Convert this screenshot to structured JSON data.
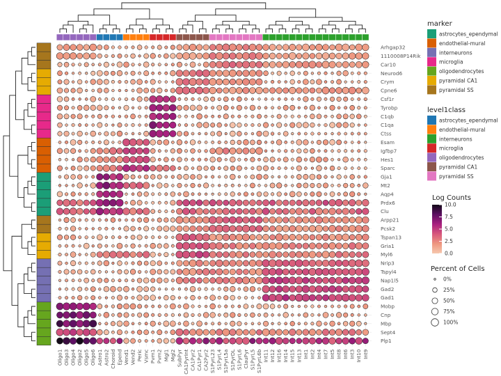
{
  "chart_data": {
    "type": "dotplot",
    "genes": [
      "Arhgap32",
      "1110008P14Rik",
      "Car10",
      "Neurod6",
      "Crym",
      "Cpne6",
      "Csf1r",
      "Tyrobp",
      "C1qb",
      "C1qa",
      "Ctss",
      "Esam",
      "Igfbp7",
      "Hes1",
      "Sparc",
      "Gja1",
      "Mt2",
      "Aqp4",
      "Prdx6",
      "Clu",
      "Arpp21",
      "Pcsk2",
      "Tspan13",
      "Gria1",
      "Myl6",
      "Nrip3",
      "Tspyl4",
      "Nap1l5",
      "Gad2",
      "Gad1",
      "Mobp",
      "Cnp",
      "Mbp",
      "Sept4",
      "Plp1"
    ],
    "clusters": [
      "Oligo1",
      "Oligo3",
      "Oligo4",
      "Oligo2",
      "Oligo5",
      "Oligo6",
      "Astro1",
      "Astro2",
      "Choroid",
      "Epend",
      "Vend1",
      "Vend2",
      "Peric",
      "Vsmc",
      "Pvm1",
      "Pvm2",
      "Mgl1",
      "Mgl2",
      "SubPyr",
      "CA1PyrInt",
      "CA1Pyr2",
      "CA1Pyr1",
      "CA2Pyr2",
      "S1PyrL23",
      "S1PyrL4",
      "S1PyrL5a",
      "S1PyrDL",
      "S1PyrL6",
      "ClauPyr",
      "S1PyrL5",
      "S1PyrL6b",
      "Int11",
      "Int12",
      "Int16",
      "Int14",
      "Int15",
      "Int13",
      "Int1",
      "Int2",
      "Int4",
      "Int7",
      "Int5",
      "Int8",
      "Int6",
      "Int3",
      "Int10",
      "Int9"
    ],
    "gene_marker": [
      "pyramidal SS",
      "pyramidal SS",
      "pyramidal SS",
      "pyramidal CA1",
      "pyramidal CA1",
      "pyramidal CA1",
      "microglia",
      "microglia",
      "microglia",
      "microglia",
      "microglia",
      "endothelial-mural",
      "endothelial-mural",
      "endothelial-mural",
      "endothelial-mural",
      "astrocytes_ependymal",
      "astrocytes_ependymal",
      "astrocytes_ependymal",
      "astrocytes_ependymal",
      "astrocytes_ependymal",
      "pyramidal SS",
      "pyramidal SS",
      "pyramidal CA1",
      "pyramidal CA1",
      "pyramidal CA1",
      "interneurons",
      "interneurons",
      "interneurons",
      "interneurons",
      "interneurons",
      "oligodendrocytes",
      "oligodendrocytes",
      "oligodendrocytes",
      "oligodendrocytes",
      "oligodendrocytes"
    ],
    "cluster_class": [
      "oligodendrocytes",
      "oligodendrocytes",
      "oligodendrocytes",
      "oligodendrocytes",
      "oligodendrocytes",
      "oligodendrocytes",
      "astrocytes_ependymal",
      "astrocytes_ependymal",
      "astrocytes_ependymal",
      "astrocytes_ependymal",
      "endothelial-mural",
      "endothelial-mural",
      "endothelial-mural",
      "endothelial-mural",
      "microglia",
      "microglia",
      "microglia",
      "microglia",
      "pyramidal CA1",
      "pyramidal CA1",
      "pyramidal CA1",
      "pyramidal CA1",
      "pyramidal CA1",
      "pyramidal SS",
      "pyramidal SS",
      "pyramidal SS",
      "pyramidal SS",
      "pyramidal SS",
      "pyramidal SS",
      "pyramidal SS",
      "pyramidal SS",
      "interneurons",
      "interneurons",
      "interneurons",
      "interneurons",
      "interneurons",
      "interneurons",
      "interneurons",
      "interneurons",
      "interneurons",
      "interneurons",
      "interneurons",
      "interneurons",
      "interneurons",
      "interneurons",
      "interneurons",
      "interneurons"
    ],
    "color_scale": {
      "title": "Log Counts",
      "range": [
        0,
        10
      ],
      "ticks": [
        "10.0",
        "7.5",
        "5.0",
        "2.5",
        "0.0"
      ]
    },
    "size_scale": {
      "title": "Percent of Cells",
      "values": [
        0,
        25,
        50,
        75,
        100
      ],
      "labels": [
        "0%",
        "25%",
        "50%",
        "75%",
        "100%"
      ]
    },
    "marker_legend": {
      "title": "marker",
      "items": [
        {
          "label": "astrocytes_ependymal",
          "color": "#1b9e77"
        },
        {
          "label": "endothelial-mural",
          "color": "#d95f02"
        },
        {
          "label": "interneurons",
          "color": "#7570b3"
        },
        {
          "label": "microglia",
          "color": "#e7298a"
        },
        {
          "label": "oligodendrocytes",
          "color": "#66a61e"
        },
        {
          "label": "pyramidal CA1",
          "color": "#e6ab02"
        },
        {
          "label": "pyramidal SS",
          "color": "#a6761d"
        }
      ]
    },
    "class_legend": {
      "title": "level1class",
      "items": [
        {
          "label": "astrocytes_ependymal",
          "color": "#1f77b4"
        },
        {
          "label": "endothelial-mural",
          "color": "#ff7f0e"
        },
        {
          "label": "interneurons",
          "color": "#2ca02c"
        },
        {
          "label": "microglia",
          "color": "#d62728"
        },
        {
          "label": "oligodendrocytes",
          "color": "#9467bd"
        },
        {
          "label": "pyramidal CA1",
          "color": "#8c564b"
        },
        {
          "label": "pyramidal SS",
          "color": "#e377c2"
        }
      ]
    }
  }
}
